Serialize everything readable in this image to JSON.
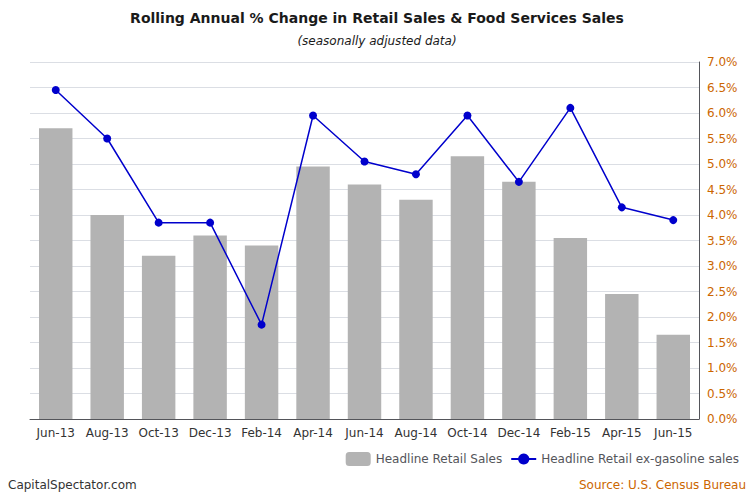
{
  "chart_data": {
    "type": "bar",
    "title": "Rolling Annual % Change in Retail Sales & Food Services Sales",
    "subtitle": "(seasonally adjusted data)",
    "annotations": [
      "CapitalSpectator.com",
      "Source: U.S. Census Bureau"
    ],
    "categories": [
      "Jun-13",
      "Aug-13",
      "Oct-13",
      "Dec-13",
      "Feb-14",
      "Apr-14",
      "Jun-14",
      "Aug-14",
      "Oct-14",
      "Dec-14",
      "Feb-15",
      "Apr-15",
      "Jun-15"
    ],
    "series": [
      {
        "name": "Headline Retail Sales",
        "type": "bar",
        "color": "#b3b3b3",
        "values": [
          5.7,
          4.0,
          3.2,
          3.6,
          3.4,
          4.95,
          4.6,
          4.3,
          5.15,
          4.65,
          3.55,
          2.45,
          1.65
        ]
      },
      {
        "name": "Headline Retail ex-gasoline sales",
        "type": "line",
        "color": "#0000cc",
        "marker": "circle",
        "values": [
          6.45,
          5.5,
          3.85,
          3.85,
          1.85,
          5.95,
          5.05,
          4.8,
          5.95,
          4.65,
          6.1,
          4.15,
          3.9
        ]
      }
    ],
    "ylim": [
      0.0,
      7.0
    ],
    "yticks": [
      {
        "value": 0.0,
        "label": "0.0%"
      },
      {
        "value": 0.5,
        "label": "0.5%"
      },
      {
        "value": 1.0,
        "label": "1.0%"
      },
      {
        "value": 1.5,
        "label": "1.5%"
      },
      {
        "value": 2.0,
        "label": "2.0%"
      },
      {
        "value": 2.5,
        "label": "2.5%"
      },
      {
        "value": 3.0,
        "label": "3.0%"
      },
      {
        "value": 3.5,
        "label": "3.5%"
      },
      {
        "value": 4.0,
        "label": "4.0%"
      },
      {
        "value": 4.5,
        "label": "4.5%"
      },
      {
        "value": 5.0,
        "label": "5.0%"
      },
      {
        "value": 5.5,
        "label": "5.5%"
      },
      {
        "value": 6.0,
        "label": "6.0%"
      },
      {
        "value": 6.5,
        "label": "6.5%"
      },
      {
        "value": 7.0,
        "label": "7.0%"
      }
    ],
    "grid": true,
    "legend": "lower right"
  }
}
